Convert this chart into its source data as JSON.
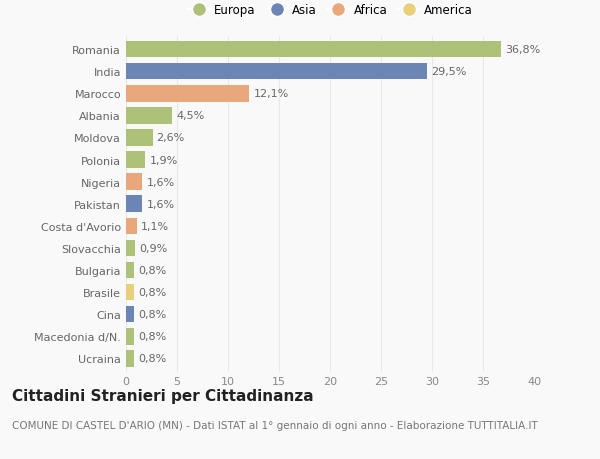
{
  "countries": [
    "Romania",
    "India",
    "Marocco",
    "Albania",
    "Moldova",
    "Polonia",
    "Nigeria",
    "Pakistan",
    "Costa d'Avorio",
    "Slovacchia",
    "Bulgaria",
    "Brasile",
    "Cina",
    "Macedonia d/N.",
    "Ucraina"
  ],
  "values": [
    36.8,
    29.5,
    12.1,
    4.5,
    2.6,
    1.9,
    1.6,
    1.6,
    1.1,
    0.9,
    0.8,
    0.8,
    0.8,
    0.8,
    0.8
  ],
  "labels": [
    "36,8%",
    "29,5%",
    "12,1%",
    "4,5%",
    "2,6%",
    "1,9%",
    "1,6%",
    "1,6%",
    "1,1%",
    "0,9%",
    "0,8%",
    "0,8%",
    "0,8%",
    "0,8%",
    "0,8%"
  ],
  "continents": [
    "Europa",
    "Asia",
    "Africa",
    "Europa",
    "Europa",
    "Europa",
    "Africa",
    "Asia",
    "Africa",
    "Europa",
    "Europa",
    "America",
    "Asia",
    "Europa",
    "Europa"
  ],
  "continent_colors": {
    "Europa": "#adc178",
    "Asia": "#6b85b5",
    "Africa": "#e8a87c",
    "America": "#e8d07a"
  },
  "legend_order": [
    "Europa",
    "Asia",
    "Africa",
    "America"
  ],
  "legend_colors": [
    "#adc178",
    "#6b85b5",
    "#e8a87c",
    "#e8d07a"
  ],
  "xlim": [
    0,
    40
  ],
  "xticks": [
    0,
    5,
    10,
    15,
    20,
    25,
    30,
    35,
    40
  ],
  "title": "Cittadini Stranieri per Cittadinanza",
  "subtitle": "COMUNE DI CASTEL D'ARIO (MN) - Dati ISTAT al 1° gennaio di ogni anno - Elaborazione TUTTITALIA.IT",
  "background_color": "#f9f9f9",
  "grid_color": "#e8e8e8",
  "bar_height": 0.75,
  "label_fontsize": 8,
  "tick_fontsize": 8,
  "title_fontsize": 11,
  "subtitle_fontsize": 7.5
}
